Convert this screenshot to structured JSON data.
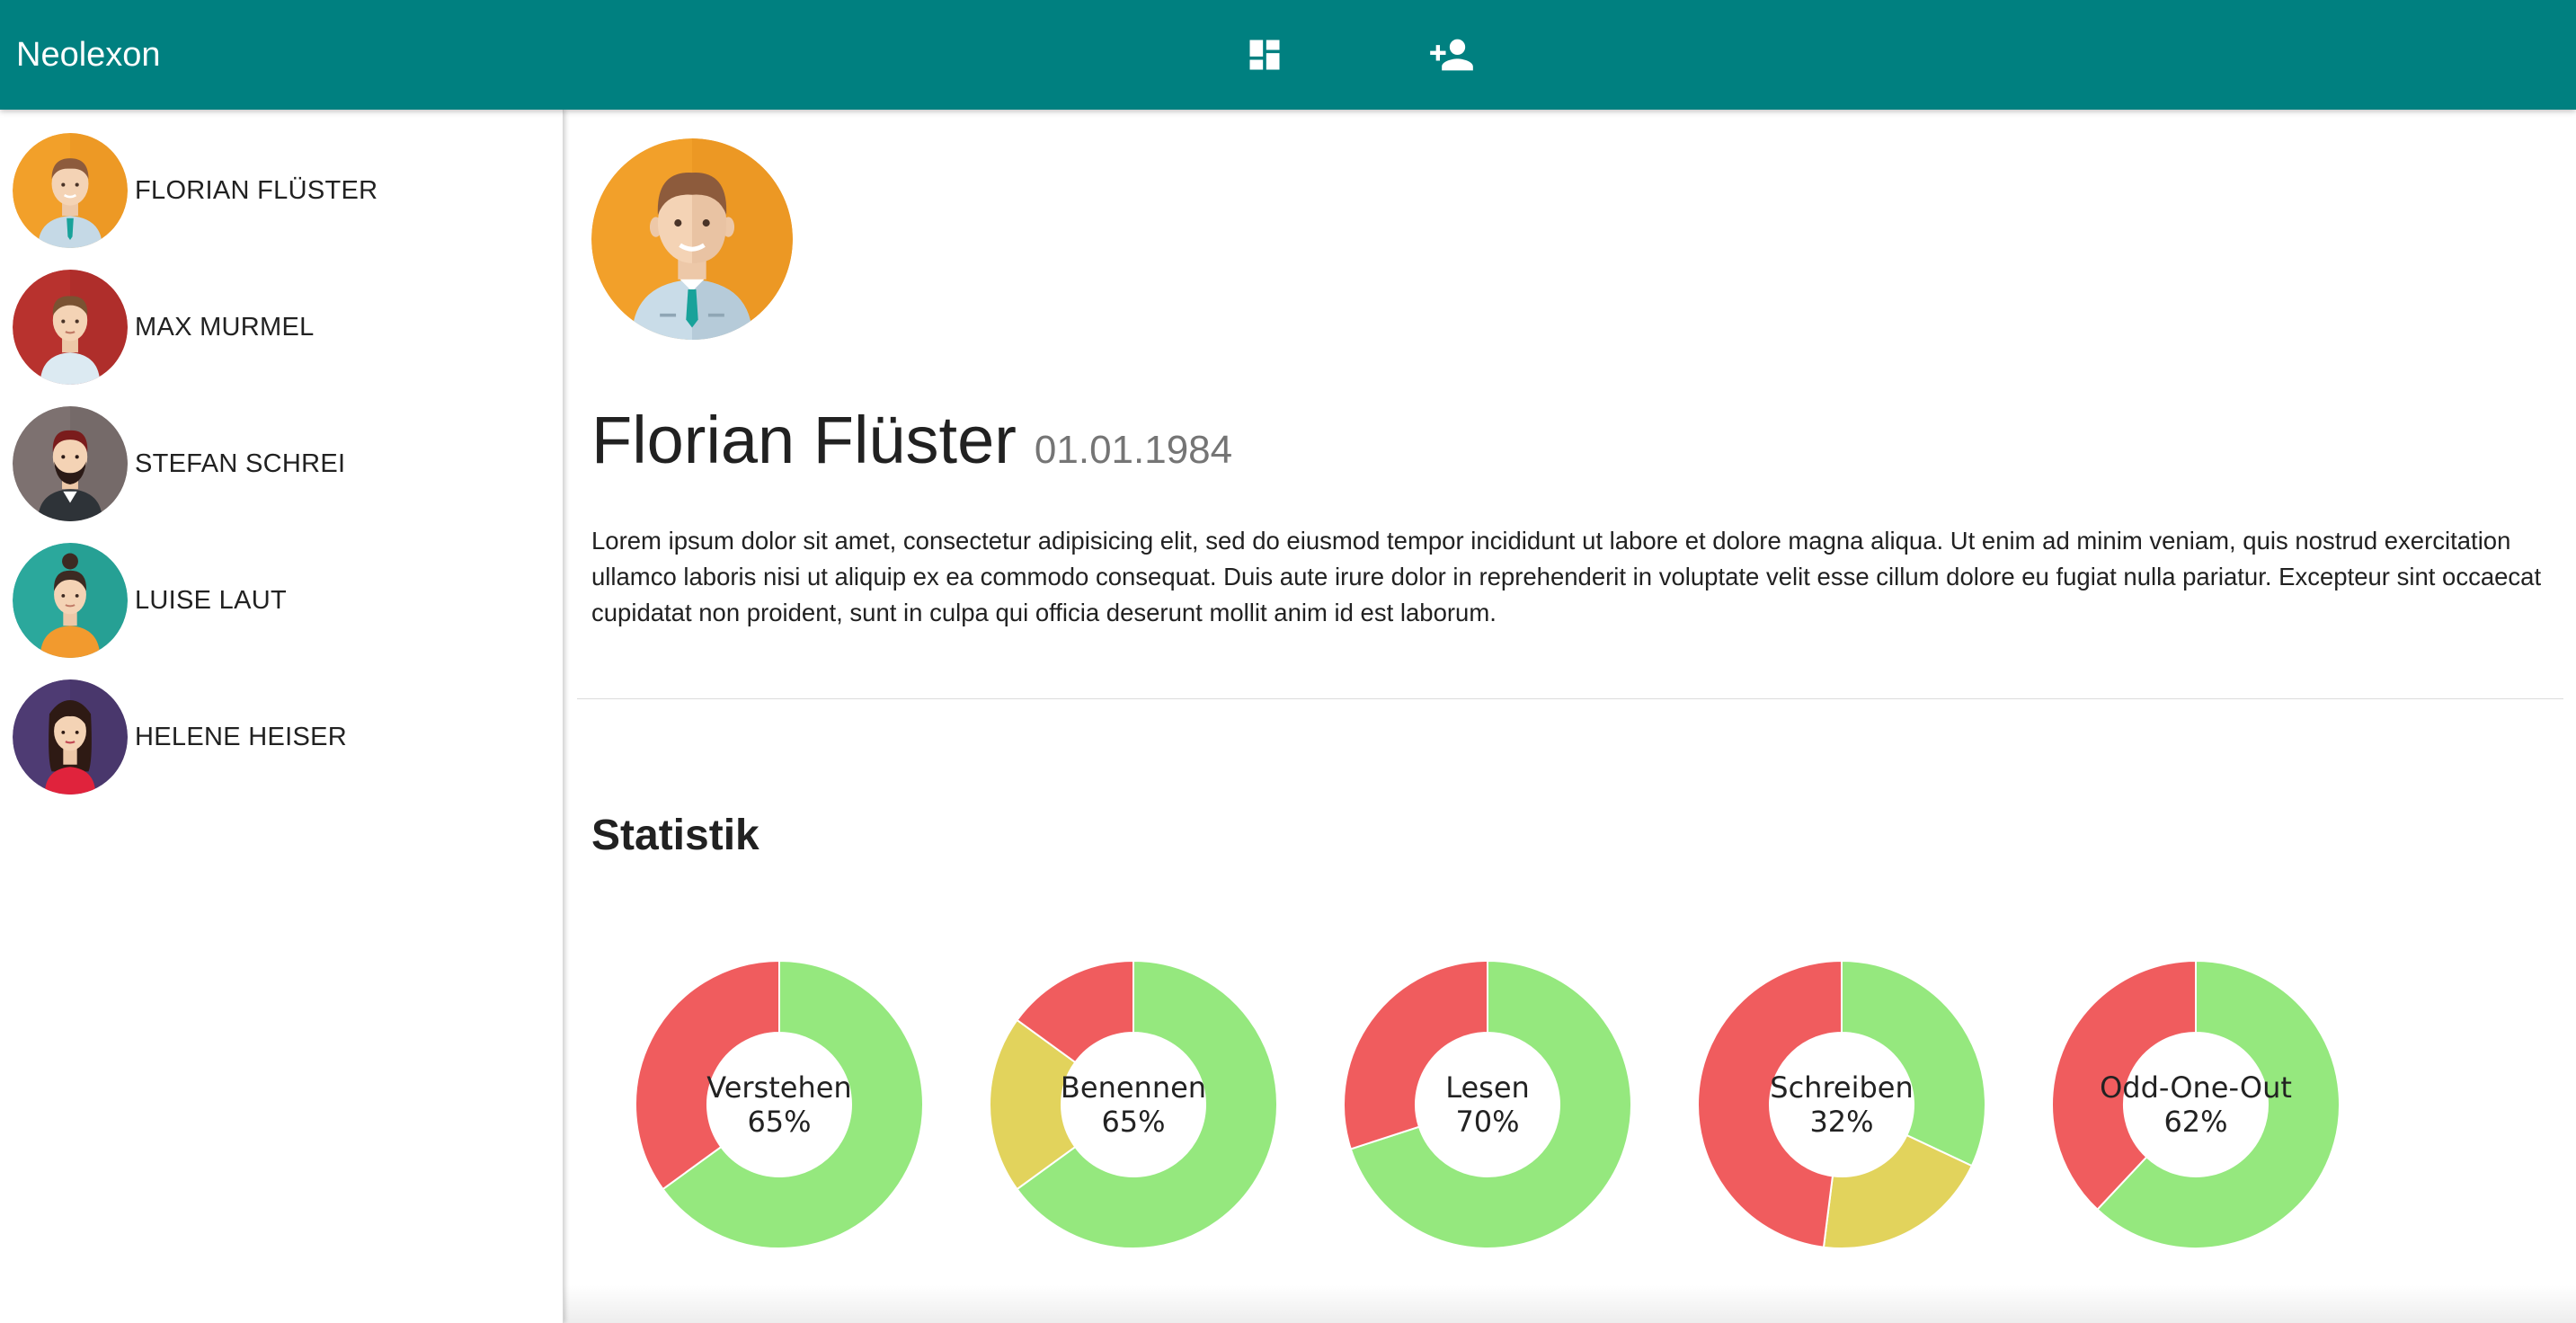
{
  "app": {
    "title": "Neolexon",
    "colors": {
      "toolbar": "#008080",
      "toolbar_text": "#ffffff"
    },
    "toolbar_icons": [
      "dashboard-icon",
      "person-add-icon"
    ]
  },
  "sidebar": {
    "persons": [
      {
        "name": "FLORIAN FLÜSTER",
        "avatar_bg": "#F2A02A"
      },
      {
        "name": "MAX MURMEL",
        "avatar_bg": "#B8322E"
      },
      {
        "name": "STEFAN SCHREI",
        "avatar_bg": "#7D7170"
      },
      {
        "name": "LUISE LAUT",
        "avatar_bg": "#2BA89C"
      },
      {
        "name": "HELENE HEISER",
        "avatar_bg": "#4E3B73"
      }
    ]
  },
  "profile": {
    "name": "Florian Flüster",
    "birthdate": "01.01.1984",
    "description": "Lorem ipsum dolor sit amet, consectetur adipisicing elit, sed do eiusmod tempor incididunt ut labore et dolore magna aliqua. Ut enim ad minim veniam, quis nostrud exercitation ullamco laboris nisi ut aliquip ex ea commodo consequat. Duis aute irure dolor in reprehenderit in voluptate velit esse cillum dolore eu fugiat nulla pariatur. Excepteur sint occaecat cupidatat non proident, sunt in culpa qui officia deserunt mollit anim id est laborum."
  },
  "statistics": {
    "title": "Statistik"
  },
  "chart_data": {
    "type": "pie",
    "variant": "donut",
    "colors": {
      "correct": "#95E87E",
      "partial": "#E2D35C",
      "wrong": "#F05C5E"
    },
    "charts": [
      {
        "label": "Verstehen",
        "percent_label": "65%",
        "segments": [
          65,
          0,
          35
        ]
      },
      {
        "label": "Benennen",
        "percent_label": "65%",
        "segments": [
          65,
          20,
          15
        ]
      },
      {
        "label": "Lesen",
        "percent_label": "70%",
        "segments": [
          70,
          0,
          30
        ]
      },
      {
        "label": "Schreiben",
        "percent_label": "32%",
        "segments": [
          32,
          20,
          48
        ]
      },
      {
        "label": "Odd-One-Out",
        "percent_label": "62%",
        "segments": [
          62,
          0,
          38
        ]
      }
    ]
  }
}
